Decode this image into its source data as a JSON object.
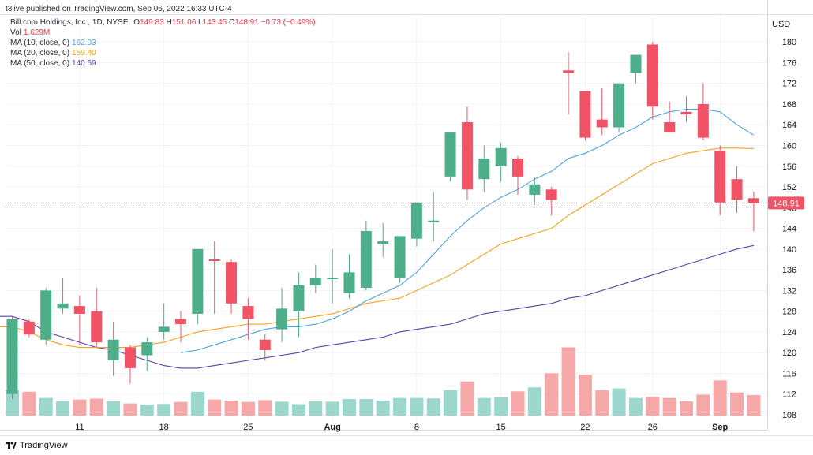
{
  "header": "t3live published on TradingView.com, Sep 06, 2022 16:33 UTC-4",
  "footer": {
    "brand": "TradingView"
  },
  "legend": {
    "title": "Bill.com Holdings, Inc., 1D, NYSE",
    "ohlc": {
      "o_label": "O",
      "o": "149.83",
      "h_label": "H",
      "h": "151.06",
      "l_label": "L",
      "l": "143.45",
      "c_label": "C",
      "c": "148.91",
      "chg": "−0.73 (−0.49%)"
    },
    "vol_label": "Vol",
    "vol": "1.629M",
    "ma": [
      {
        "label": "MA (10, close, 0)",
        "value": "162.03",
        "color": "#4ba3e3"
      },
      {
        "label": "MA (20, close, 0)",
        "value": "159.40",
        "color": "#f7a21b"
      },
      {
        "label": "MA (50, close, 0)",
        "value": "140.69",
        "color": "#5d3fa6"
      }
    ]
  },
  "colors": {
    "up": "#4caf8a",
    "down": "#ef5365",
    "vol_up": "#9bd7cc",
    "vol_down": "#f6a8a8"
  },
  "chart_data": {
    "type": "candlestick",
    "currency": "USD",
    "last_price": "148.91",
    "ylim": [
      108,
      182
    ],
    "yticks": [
      108,
      112,
      116,
      120,
      124,
      128,
      132,
      136,
      140,
      144,
      148,
      152,
      156,
      160,
      164,
      168,
      172,
      176,
      180
    ],
    "xticks": [
      {
        "label": "11",
        "index": 4,
        "bold": false
      },
      {
        "label": "18",
        "index": 9,
        "bold": false
      },
      {
        "label": "25",
        "index": 14,
        "bold": false
      },
      {
        "label": "Aug",
        "index": 19,
        "bold": true
      },
      {
        "label": "8",
        "index": 24,
        "bold": false
      },
      {
        "label": "15",
        "index": 29,
        "bold": false
      },
      {
        "label": "22",
        "index": 34,
        "bold": false
      },
      {
        "label": "26",
        "index": 38,
        "bold": false
      },
      {
        "label": "Sep",
        "index": 42,
        "bold": true
      }
    ],
    "candles": [
      [
        112.0,
        127.0,
        111.0,
        126.5,
        11.5
      ],
      [
        126.0,
        126.5,
        123.0,
        123.5,
        10.8
      ],
      [
        122.5,
        132.5,
        121.5,
        132.0,
        8.0
      ],
      [
        128.5,
        134.5,
        127.5,
        129.5,
        6.5
      ],
      [
        129.0,
        131.0,
        121.5,
        127.5,
        7.3
      ],
      [
        128.0,
        132.5,
        121.0,
        122.0,
        7.7
      ],
      [
        118.5,
        126.0,
        115.5,
        122.5,
        6.5
      ],
      [
        121.0,
        121.5,
        114.0,
        117.0,
        5.5
      ],
      [
        119.5,
        123.0,
        116.5,
        122.0,
        5.0
      ],
      [
        124.0,
        129.5,
        122.5,
        125.0,
        5.3
      ],
      [
        126.5,
        128.0,
        122.0,
        125.5,
        6.2
      ],
      [
        127.5,
        140.0,
        125.5,
        140.0,
        10.8
      ],
      [
        138.0,
        141.5,
        127.5,
        137.8,
        7.3
      ],
      [
        137.5,
        138.0,
        127.5,
        129.5,
        6.8
      ],
      [
        129.0,
        130.5,
        122.5,
        126.5,
        6.2
      ],
      [
        122.5,
        123.5,
        118.5,
        120.5,
        7.0
      ],
      [
        124.5,
        132.5,
        122.0,
        128.5,
        6.3
      ],
      [
        128.0,
        135.5,
        123.0,
        133.0,
        5.2
      ],
      [
        133.0,
        137.0,
        131.5,
        134.5,
        6.5
      ],
      [
        134.5,
        140.0,
        129.5,
        134.5,
        6.3
      ],
      [
        131.5,
        139.0,
        130.5,
        135.5,
        7.5
      ],
      [
        132.5,
        145.5,
        132.0,
        143.5,
        7.5
      ],
      [
        141.0,
        145.0,
        138.5,
        141.5,
        6.8
      ],
      [
        134.5,
        142.5,
        133.5,
        142.5,
        8.0
      ],
      [
        142.0,
        149.0,
        140.5,
        149.0,
        8.0
      ],
      [
        145.5,
        151.0,
        141.5,
        145.5,
        7.8
      ],
      [
        154.0,
        162.5,
        153.0,
        162.5,
        11.5
      ],
      [
        164.5,
        167.5,
        149.5,
        151.5,
        15.5
      ],
      [
        153.5,
        160.0,
        151.0,
        157.5,
        8.0
      ],
      [
        156.0,
        160.5,
        153.0,
        159.5,
        8.3
      ],
      [
        157.5,
        158.0,
        150.5,
        154.0,
        11.0
      ],
      [
        150.5,
        154.0,
        148.5,
        152.5,
        12.8
      ],
      [
        151.5,
        152.0,
        146.5,
        149.5,
        19.2
      ],
      [
        174.5,
        178.0,
        166.0,
        174.0,
        31.0
      ],
      [
        170.5,
        170.5,
        161.0,
        161.5,
        18.5
      ],
      [
        165.0,
        171.0,
        162.0,
        163.5,
        11.5
      ],
      [
        163.5,
        172.0,
        162.5,
        172.0,
        12.3
      ],
      [
        174.0,
        177.0,
        172.0,
        177.5,
        8.0
      ],
      [
        179.5,
        180.0,
        165.0,
        167.5,
        8.5
      ],
      [
        164.5,
        168.5,
        162.5,
        162.5,
        8.0
      ],
      [
        166.5,
        169.5,
        164.5,
        166.0,
        6.5
      ],
      [
        168.0,
        172.0,
        161.0,
        161.5,
        9.5
      ],
      [
        159.0,
        160.0,
        146.5,
        149.0,
        16.0
      ],
      [
        153.5,
        156.0,
        147.0,
        149.5,
        10.5
      ],
      [
        149.83,
        151.06,
        143.45,
        148.91,
        9.3
      ]
    ],
    "ma10": [
      null,
      null,
      null,
      null,
      null,
      null,
      null,
      null,
      null,
      null,
      120.0,
      120.5,
      121.5,
      122.5,
      123.5,
      124.5,
      125.0,
      125.0,
      125.5,
      126.5,
      128.0,
      130.0,
      131.5,
      133.0,
      135.5,
      139.0,
      142.5,
      145.5,
      148.0,
      150.0,
      151.5,
      153.5,
      155.0,
      157.5,
      158.5,
      160.0,
      162.0,
      163.5,
      165.5,
      166.5,
      167.0,
      167.0,
      166.5,
      164.0,
      162.03
    ],
    "ma20": [
      125.0,
      124.0,
      122.5,
      121.5,
      121.0,
      121.0,
      121.0,
      121.0,
      121.5,
      122.0,
      123.0,
      124.0,
      124.5,
      125.0,
      125.5,
      125.5,
      126.0,
      126.5,
      127.0,
      127.5,
      128.5,
      129.5,
      130.0,
      130.5,
      132.0,
      133.5,
      135.0,
      137.0,
      139.0,
      141.0,
      142.0,
      143.0,
      144.0,
      146.5,
      148.5,
      150.5,
      152.5,
      154.5,
      156.5,
      157.5,
      158.5,
      159.0,
      159.5,
      159.5,
      159.4
    ],
    "ma50": [
      127.0,
      126.0,
      124.0,
      123.0,
      122.0,
      121.0,
      120.5,
      119.5,
      118.5,
      117.5,
      117.0,
      117.0,
      117.5,
      118.0,
      118.5,
      119.0,
      119.5,
      120.0,
      121.0,
      121.5,
      122.0,
      122.5,
      123.0,
      124.0,
      124.5,
      125.0,
      125.5,
      126.5,
      127.5,
      128.0,
      128.5,
      129.0,
      129.5,
      130.5,
      131.0,
      132.0,
      133.0,
      134.0,
      135.0,
      136.0,
      137.0,
      138.0,
      139.0,
      140.0,
      140.69
    ],
    "volume_scale_max": 34
  }
}
